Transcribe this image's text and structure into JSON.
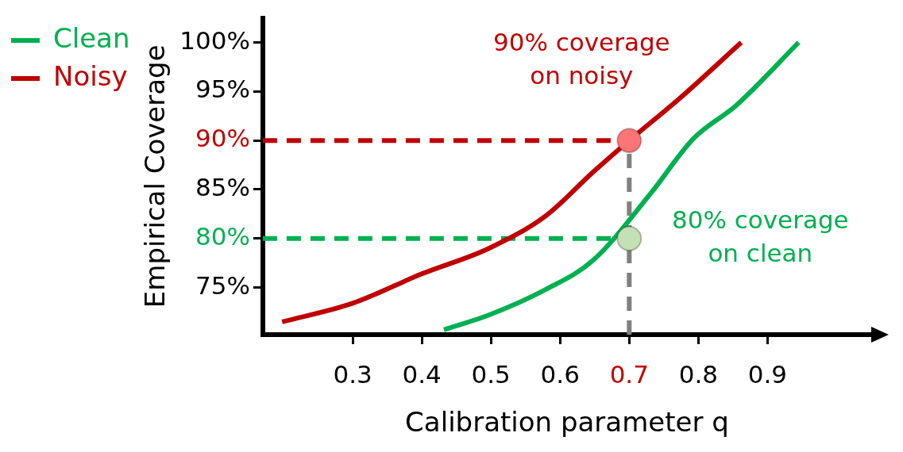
{
  "chart_data": {
    "type": "line",
    "xlabel": "Calibration parameter q",
    "ylabel": "Empirical Coverage",
    "xlim": [
      0.17,
      1.05
    ],
    "ylim": [
      70.2,
      102.5
    ],
    "xticks": [
      0.3,
      0.4,
      0.5,
      0.6,
      0.7,
      0.8,
      0.9
    ],
    "yticks": [
      {
        "value": 75,
        "label": "75%"
      },
      {
        "value": 80,
        "label": "80%"
      },
      {
        "value": 85,
        "label": "85%"
      },
      {
        "value": 90,
        "label": "90%"
      },
      {
        "value": 95,
        "label": "95%"
      },
      {
        "value": 100,
        "label": "100%"
      }
    ],
    "grid": false,
    "legend": "top left",
    "series": [
      {
        "name": "Clean",
        "color": "#00b050",
        "x": [
          0.432,
          0.497,
          0.579,
          0.648,
          0.731,
          0.793,
          0.855,
          0.945
        ],
        "values": [
          70.7,
          72.2,
          74.8,
          77.8,
          84.6,
          90.2,
          93.6,
          100
        ]
      },
      {
        "name": "Noisy",
        "color": "#c00000",
        "x": [
          0.198,
          0.3,
          0.4,
          0.497,
          0.579,
          0.648,
          0.7,
          0.773,
          0.862
        ],
        "values": [
          71.5,
          73.4,
          76.4,
          79,
          82.3,
          86.8,
          90,
          94.3,
          100
        ]
      },
      {
        "type": "scatter",
        "marker": "circle",
        "color": "#c5e0b4",
        "x": [
          0.7
        ],
        "values": [
          80
        ]
      },
      {
        "type": "scatter",
        "marker": "circle",
        "color": "#ff7575",
        "x": [
          0.7
        ],
        "values": [
          90
        ]
      }
    ],
    "ref_lines": [
      {
        "axis": "y",
        "value": 90,
        "color": "#c00000",
        "line_style": "dashed"
      },
      {
        "axis": "y",
        "value": 80,
        "color": "#00b050",
        "line_style": "dashed"
      },
      {
        "axis": "x",
        "value": 0.7,
        "color": "#808080",
        "line_style": "dashed"
      }
    ],
    "annotations": [
      {
        "text": "80% coverage on clean",
        "x": 0.7,
        "y": 80
      },
      {
        "text": "90% coverage on noisy",
        "x": 0.7,
        "y": 90
      }
    ]
  }
}
